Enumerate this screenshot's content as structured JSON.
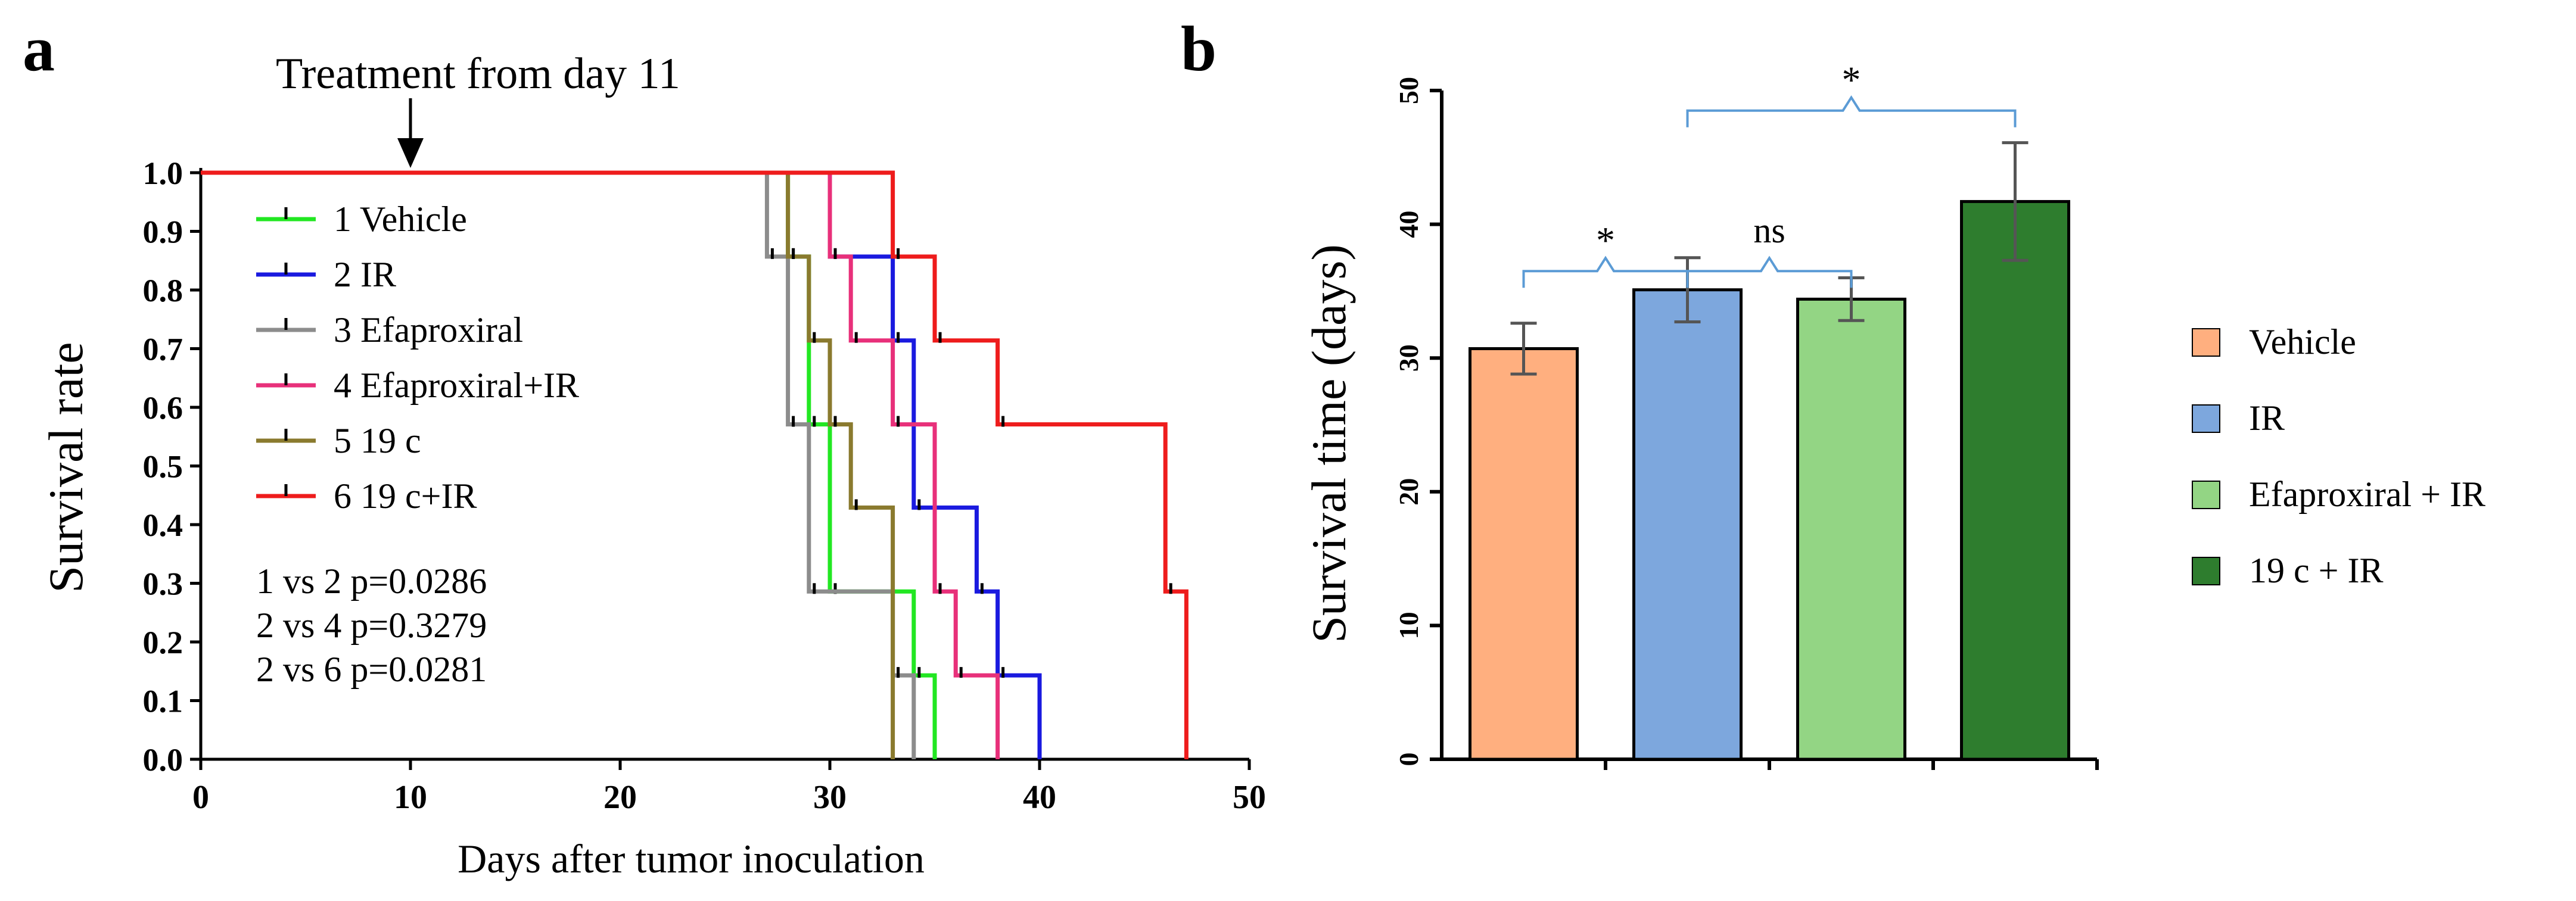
{
  "chart_data": [
    {
      "panel": "a",
      "type": "line",
      "subtype": "kaplan-meier step",
      "annotation": "Treatment from day 11",
      "annotation_x": 10,
      "xlabel": "Days after  tumor inoculation",
      "ylabel": "Survival rate",
      "xlim": [
        0,
        50
      ],
      "ylim": [
        0,
        1.0
      ],
      "xticks": [
        "0",
        "10",
        "20",
        "30",
        "40",
        "50"
      ],
      "yticks": [
        "0.0",
        "0.1",
        "0.2",
        "0.3",
        "0.4",
        "0.5",
        "0.6",
        "0.7",
        "0.8",
        "0.9",
        "1.0"
      ],
      "series": [
        {
          "name": "1 Vehicle",
          "color": "#22e722",
          "times": [
            28,
            29,
            30,
            34,
            35
          ],
          "survival": [
            0.857,
            0.571,
            0.286,
            0.143,
            0.0
          ]
        },
        {
          "name": "2 IR",
          "color": "#1a1adf",
          "times": [
            30,
            33,
            34,
            37,
            38,
            40
          ],
          "survival": [
            0.857,
            0.714,
            0.429,
            0.286,
            0.143,
            0.0
          ]
        },
        {
          "name": "3 Efaproxiral",
          "color": "#8c8c8c",
          "times": [
            27,
            28,
            29,
            33,
            34
          ],
          "survival": [
            0.857,
            0.571,
            0.286,
            0.143,
            0.0
          ]
        },
        {
          "name": "4 Efaproxiral+IR",
          "color": "#e8307a",
          "times": [
            30,
            31,
            33,
            35,
            36,
            38
          ],
          "survival": [
            0.857,
            0.714,
            0.571,
            0.286,
            0.143,
            0.0
          ]
        },
        {
          "name": "5 19 c",
          "color": "#8a7a2e",
          "times": [
            28,
            29,
            30,
            31,
            33
          ],
          "survival": [
            0.857,
            0.714,
            0.571,
            0.429,
            0.0
          ]
        },
        {
          "name": "6 19 c+IR",
          "color": "#ee1c1c",
          "times": [
            33,
            35,
            38,
            46,
            47
          ],
          "survival": [
            0.857,
            0.714,
            0.571,
            0.286,
            0.0
          ]
        }
      ],
      "pvalues": [
        "1 vs 2 p=0.0286",
        "2 vs 4 p=0.3279",
        "2 vs 6 p=0.0281"
      ]
    },
    {
      "panel": "b",
      "type": "bar",
      "ylabel": "Survival time (days)",
      "ylim": [
        0,
        50
      ],
      "yticks": [
        "0",
        "10",
        "20",
        "30",
        "40",
        "50"
      ],
      "categories": [
        "Vehicle",
        "IR",
        "Efaproxiral + IR",
        "19 c + IR"
      ],
      "values": [
        30.7,
        35.1,
        34.4,
        41.7
      ],
      "errors": [
        1.9,
        2.4,
        1.6,
        4.4
      ],
      "colors": [
        "#ffaf7f",
        "#7da7dd",
        "#93d584",
        "#2e7d2e"
      ],
      "significance": [
        {
          "label": "*",
          "left": [
            0
          ],
          "right": [
            1
          ]
        },
        {
          "label": "ns",
          "left": [
            1
          ],
          "right": [
            2
          ]
        },
        {
          "label": "*",
          "left": [
            1
          ],
          "right": [
            3
          ]
        }
      ],
      "bracket_color": "#5b9bd5"
    }
  ],
  "panel_labels": {
    "a": "a",
    "b": "b"
  }
}
